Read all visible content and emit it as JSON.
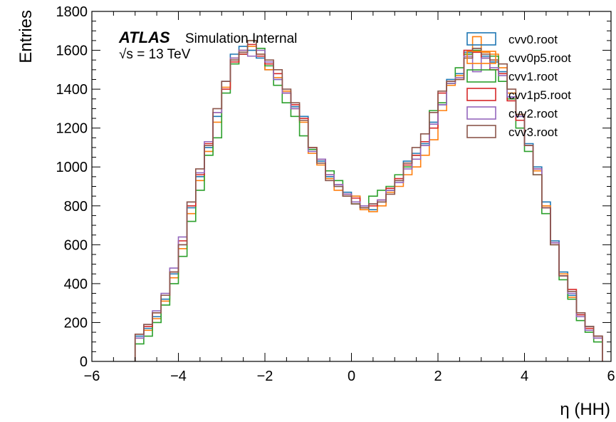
{
  "chart_data": {
    "type": "histogram-step",
    "xlabel": "η (HH)",
    "ylabel": "Entries",
    "xlim": [
      -6,
      6
    ],
    "ylim": [
      0,
      1800
    ],
    "xticks": [
      "−6",
      "−4",
      "−2",
      "0",
      "2",
      "4",
      "6"
    ],
    "yticks": [
      "0",
      "200",
      "400",
      "600",
      "800",
      "1000",
      "1200",
      "1400",
      "1600",
      "1800"
    ],
    "annotation": {
      "experiment": "ATLAS",
      "status": "Simulation Internal",
      "sqrt_s": "√s = 13 TeV"
    },
    "bin_edges_range": [
      -5,
      5
    ],
    "bin_width": 0.2,
    "series": [
      {
        "name": "cvv0.root",
        "color": "#1f77b4",
        "values": [
          130,
          170,
          230,
          320,
          450,
          600,
          790,
          950,
          1100,
          1260,
          1440,
          1580,
          1620,
          1600,
          1560,
          1500,
          1450,
          1380,
          1310,
          1260,
          1090,
          1030,
          950,
          900,
          870,
          850,
          790,
          780,
          820,
          880,
          930,
          1030,
          1070,
          1120,
          1230,
          1320,
          1450,
          1480,
          1590,
          1610,
          1570,
          1540,
          1490,
          1360,
          1260,
          1120,
          1000,
          820,
          620,
          460,
          340,
          240,
          180,
          130
        ]
      },
      {
        "name": "cvv0p5.root",
        "color": "#ff7f0e",
        "values": [
          120,
          160,
          220,
          310,
          430,
          580,
          760,
          930,
          1080,
          1230,
          1410,
          1560,
          1600,
          1620,
          1580,
          1500,
          1460,
          1390,
          1300,
          1230,
          1070,
          1010,
          940,
          880,
          860,
          850,
          780,
          770,
          800,
          870,
          900,
          960,
          1000,
          1060,
          1140,
          1290,
          1420,
          1470,
          1580,
          1670,
          1590,
          1580,
          1510,
          1380,
          1270,
          1110,
          980,
          800,
          600,
          450,
          330,
          230,
          170,
          120
        ]
      },
      {
        "name": "cvv1.root",
        "color": "#2ca02c",
        "values": [
          90,
          130,
          200,
          290,
          400,
          540,
          720,
          880,
          1060,
          1150,
          1380,
          1530,
          1580,
          1650,
          1610,
          1520,
          1420,
          1330,
          1260,
          1160,
          1090,
          1040,
          980,
          930,
          850,
          810,
          790,
          850,
          880,
          900,
          960,
          1000,
          1060,
          1110,
          1290,
          1330,
          1430,
          1510,
          1580,
          1600,
          1560,
          1570,
          1440,
          1350,
          1200,
          1080,
          960,
          760,
          600,
          420,
          320,
          210,
          150,
          100
        ]
      },
      {
        "name": "cvv1p5.root",
        "color": "#d62728",
        "values": [
          140,
          180,
          250,
          340,
          460,
          620,
          800,
          960,
          1120,
          1280,
          1400,
          1540,
          1580,
          1630,
          1570,
          1530,
          1480,
          1380,
          1320,
          1250,
          1100,
          1040,
          960,
          910,
          860,
          840,
          790,
          800,
          830,
          890,
          940,
          1010,
          1060,
          1130,
          1200,
          1380,
          1440,
          1450,
          1600,
          1590,
          1560,
          1500,
          1480,
          1340,
          1240,
          1110,
          990,
          790,
          610,
          440,
          370,
          240,
          170,
          130
        ]
      },
      {
        "name": "cvv2.root",
        "color": "#9467bd",
        "values": [
          120,
          190,
          260,
          350,
          480,
          640,
          820,
          970,
          1130,
          1280,
          1440,
          1560,
          1600,
          1570,
          1600,
          1540,
          1450,
          1380,
          1300,
          1240,
          1080,
          1040,
          960,
          910,
          860,
          820,
          800,
          810,
          830,
          880,
          920,
          990,
          1040,
          1110,
          1220,
          1320,
          1430,
          1460,
          1570,
          1490,
          1560,
          1510,
          1470,
          1360,
          1260,
          1110,
          990,
          790,
          610,
          440,
          350,
          230,
          160,
          120
        ]
      },
      {
        "name": "cvv3.root",
        "color": "#8c564b",
        "values": [
          140,
          190,
          250,
          340,
          460,
          600,
          820,
          990,
          1110,
          1300,
          1440,
          1550,
          1590,
          1650,
          1580,
          1550,
          1500,
          1400,
          1330,
          1240,
          1100,
          1020,
          930,
          900,
          850,
          810,
          790,
          810,
          820,
          860,
          930,
          1020,
          1100,
          1170,
          1280,
          1390,
          1440,
          1450,
          1560,
          1610,
          1580,
          1550,
          1530,
          1400,
          1270,
          1110,
          960,
          790,
          600,
          440,
          360,
          250,
          180,
          130
        ]
      }
    ]
  }
}
